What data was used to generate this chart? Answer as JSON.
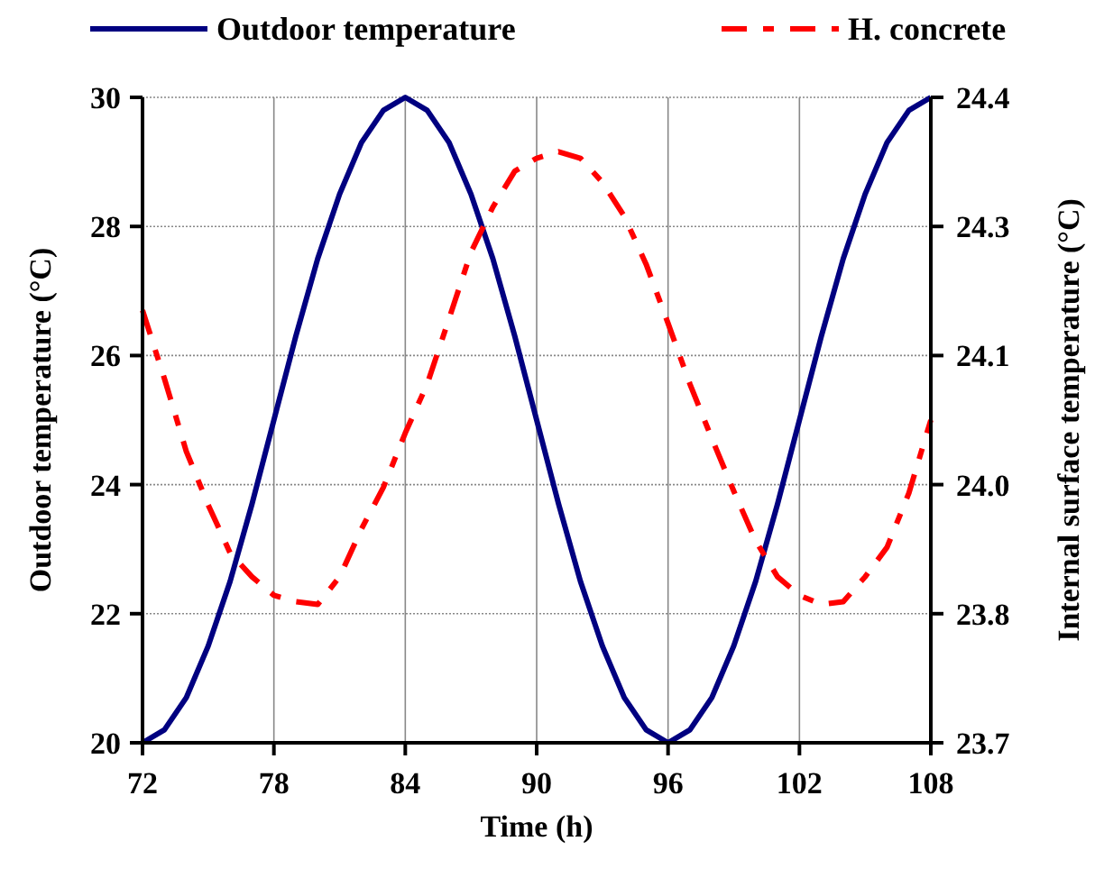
{
  "chart_data": {
    "type": "line",
    "xlabel": "Time (h)",
    "ylabel": "Outdoor temperature (°C)",
    "y2label": "Internal surface temperature (°C)",
    "xlim": [
      72,
      108
    ],
    "xticks": [
      72,
      78,
      84,
      90,
      96,
      102,
      108
    ],
    "ylim": [
      20,
      30
    ],
    "yticks": [
      20,
      22,
      24,
      26,
      28,
      30
    ],
    "y2lim": [
      23.7,
      24.4
    ],
    "y2ticks": [
      {
        "value": 23.7,
        "label": "23.7"
      },
      {
        "value": 23.84,
        "label": "23.8"
      },
      {
        "value": 23.98,
        "label": "24.0"
      },
      {
        "value": 24.12,
        "label": "24.1"
      },
      {
        "value": 24.26,
        "label": "24.3"
      },
      {
        "value": 24.4,
        "label": "24.4"
      }
    ],
    "grid": true,
    "legend": "top",
    "marker": "none",
    "series": [
      {
        "name": "Outdoor temperature",
        "color": "#000080",
        "line_style": "solid",
        "x": [
          72,
          73,
          74,
          75,
          76,
          77,
          78,
          79,
          80,
          81,
          82,
          83,
          84,
          85,
          86,
          87,
          88,
          89,
          90,
          91,
          92,
          93,
          94,
          95,
          96,
          97,
          98,
          99,
          100,
          101,
          102,
          103,
          104,
          105,
          106,
          107,
          108
        ],
        "values": [
          20,
          20.2,
          20.7,
          21.5,
          22.5,
          23.7,
          25,
          26.3,
          27.5,
          28.5,
          29.3,
          29.8,
          30,
          29.8,
          29.3,
          28.5,
          27.5,
          26.3,
          25,
          23.7,
          22.5,
          21.5,
          20.7,
          20.2,
          20,
          20.2,
          20.7,
          21.5,
          22.5,
          23.7,
          25,
          26.3,
          27.5,
          28.5,
          29.3,
          29.8,
          30
        ]
      },
      {
        "name": "H. concrete",
        "color": "#ff0000",
        "line_style": "dashed",
        "axis": "y2",
        "x": [
          72,
          73,
          74,
          75,
          76,
          77,
          78,
          79,
          80,
          81,
          82,
          83,
          84,
          85,
          86,
          87,
          88,
          89,
          90,
          91,
          92,
          93,
          94,
          95,
          96,
          97,
          98,
          99,
          100,
          101,
          102,
          103,
          104,
          105,
          106,
          107,
          108
        ],
        "values": [
          24.169,
          24.095,
          24.016,
          23.958,
          23.906,
          23.88,
          23.86,
          23.853,
          23.85,
          23.88,
          23.932,
          23.977,
          24.036,
          24.089,
          24.16,
          24.232,
          24.281,
          24.32,
          24.334,
          24.341,
          24.334,
          24.308,
          24.271,
          24.219,
          24.155,
          24.089,
          24.03,
          23.973,
          23.919,
          23.88,
          23.86,
          23.85,
          23.853,
          23.88,
          23.912,
          23.971,
          24.05
        ]
      }
    ]
  }
}
